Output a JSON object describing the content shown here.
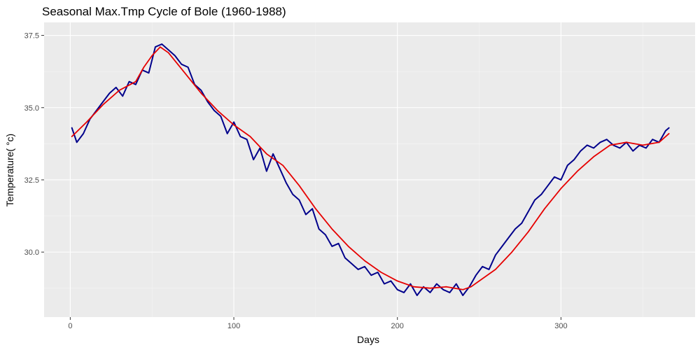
{
  "chart_data": {
    "type": "line",
    "title": "Seasonal Max.Tmp Cycle of Bole (1960-1988)",
    "xlabel": "Days",
    "ylabel": "Temperature( °c)",
    "xlim": [
      -16,
      382
    ],
    "ylim": [
      27.75,
      37.95
    ],
    "x_ticks": [
      0,
      100,
      200,
      300
    ],
    "y_ticks": [
      30.0,
      32.5,
      35.0,
      37.5
    ],
    "y_tick_labels": [
      "30.0",
      "32.5",
      "35.0",
      "37.5"
    ],
    "grid": true,
    "legend": "none",
    "series": [
      {
        "style": "daily",
        "color": "#00008b",
        "x": [
          1,
          4,
          8,
          12,
          16,
          20,
          24,
          28,
          32,
          36,
          40,
          44,
          48,
          52,
          56,
          60,
          64,
          68,
          72,
          76,
          80,
          84,
          88,
          92,
          96,
          100,
          104,
          108,
          112,
          116,
          120,
          124,
          128,
          132,
          136,
          140,
          144,
          148,
          152,
          156,
          160,
          164,
          168,
          172,
          176,
          180,
          184,
          188,
          192,
          196,
          200,
          204,
          208,
          212,
          216,
          220,
          224,
          228,
          232,
          236,
          240,
          244,
          248,
          252,
          256,
          260,
          264,
          268,
          272,
          276,
          280,
          284,
          288,
          292,
          296,
          300,
          304,
          308,
          312,
          316,
          320,
          324,
          328,
          332,
          336,
          340,
          344,
          348,
          352,
          356,
          360,
          364,
          366
        ],
        "y": [
          34.3,
          33.8,
          34.1,
          34.6,
          34.9,
          35.2,
          35.5,
          35.7,
          35.4,
          35.9,
          35.8,
          36.3,
          36.2,
          37.1,
          37.2,
          37.0,
          36.8,
          36.5,
          36.4,
          35.8,
          35.6,
          35.2,
          34.9,
          34.7,
          34.1,
          34.5,
          34.0,
          33.9,
          33.2,
          33.6,
          32.8,
          33.4,
          32.9,
          32.4,
          32.0,
          31.8,
          31.3,
          31.5,
          30.8,
          30.6,
          30.2,
          30.3,
          29.8,
          29.6,
          29.4,
          29.5,
          29.2,
          29.3,
          28.9,
          29.0,
          28.7,
          28.6,
          28.9,
          28.5,
          28.8,
          28.6,
          28.9,
          28.7,
          28.6,
          28.9,
          28.5,
          28.8,
          29.2,
          29.5,
          29.4,
          29.9,
          30.2,
          30.5,
          30.8,
          31.0,
          31.4,
          31.8,
          32.0,
          32.3,
          32.6,
          32.5,
          33.0,
          33.2,
          33.5,
          33.7,
          33.6,
          33.8,
          33.9,
          33.7,
          33.6,
          33.8,
          33.5,
          33.7,
          33.6,
          33.9,
          33.8,
          34.2,
          34.3
        ]
      },
      {
        "style": "smoothed",
        "color": "#e60000",
        "x": [
          1,
          10,
          20,
          30,
          40,
          45,
          50,
          55,
          60,
          70,
          80,
          90,
          100,
          110,
          120,
          130,
          140,
          150,
          160,
          170,
          180,
          190,
          200,
          210,
          220,
          230,
          240,
          245,
          250,
          260,
          270,
          280,
          290,
          300,
          310,
          320,
          330,
          340,
          350,
          360,
          366
        ],
        "y": [
          34.0,
          34.5,
          35.1,
          35.6,
          35.9,
          36.4,
          36.8,
          37.1,
          36.9,
          36.2,
          35.5,
          34.9,
          34.4,
          34.0,
          33.4,
          33.0,
          32.3,
          31.5,
          30.8,
          30.2,
          29.7,
          29.3,
          29.0,
          28.8,
          28.75,
          28.8,
          28.7,
          28.8,
          29.0,
          29.4,
          30.0,
          30.7,
          31.5,
          32.2,
          32.8,
          33.3,
          33.7,
          33.8,
          33.7,
          33.8,
          34.1
        ]
      }
    ]
  }
}
